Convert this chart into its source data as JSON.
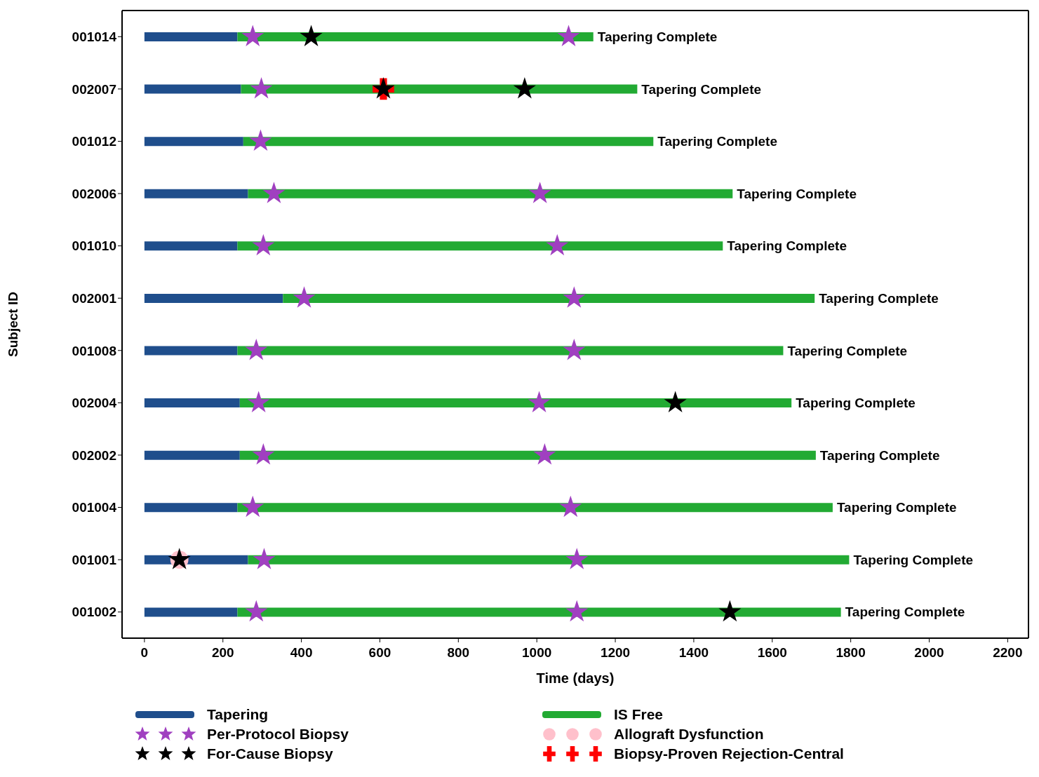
{
  "chart_data": {
    "type": "bar",
    "orientation": "horizontal",
    "stacked": true,
    "categories": [
      "001014",
      "002007",
      "001012",
      "002006",
      "001010",
      "002001",
      "001008",
      "002004",
      "002002",
      "001004",
      "001001",
      "001002"
    ],
    "series": [
      {
        "name": "Tapering",
        "color": "#1f4e8c",
        "values": [
          237,
          246,
          252,
          264,
          237,
          353,
          237,
          243,
          243,
          237,
          264,
          237
        ]
      },
      {
        "name": "IS Free",
        "color": "#22aa33",
        "values": [
          907,
          1010,
          1045,
          1235,
          1237,
          1355,
          1391,
          1406,
          1468,
          1517,
          1532,
          1538
        ]
      },
      {
        "name": "Per-Protocol Biopsy",
        "type": "scatter",
        "marker": "star",
        "color": "#a040c0",
        "x": [
          "001014",
          "001014",
          "002007",
          "001012",
          "002006",
          "002006",
          "001010",
          "001010",
          "002001",
          "002001",
          "001008",
          "001008",
          "002004",
          "002004",
          "002002",
          "002002",
          "001004",
          "001004",
          "001001",
          "001001",
          "001002",
          "001002"
        ],
        "values": [
          276,
          1081,
          298,
          296,
          330,
          1008,
          303,
          1052,
          407,
          1095,
          285,
          1095,
          291,
          1006,
          303,
          1020,
          276,
          1086,
          305,
          1102,
          285,
          1102
        ]
      },
      {
        "name": "Allograft Dysfunction",
        "type": "scatter",
        "marker": "circle",
        "color": "#ffc0cb",
        "x": [
          "001001"
        ],
        "values": [
          89
        ]
      },
      {
        "name": "For-Cause Biopsy",
        "type": "scatter",
        "marker": "star",
        "color": "#000000",
        "x": [
          "001014",
          "002007",
          "002007",
          "002004",
          "001001",
          "001002"
        ],
        "values": [
          425,
          609,
          969,
          1353,
          89,
          1492
        ]
      },
      {
        "name": "Biopsy-Proven Rejection-Central",
        "type": "scatter",
        "marker": "cross",
        "color": "#ff0000",
        "x": [
          "002007"
        ],
        "values": [
          609
        ]
      }
    ],
    "xlim": [
      -57,
      2253
    ],
    "xticks": [
      0,
      200,
      400,
      600,
      800,
      1000,
      1200,
      1400,
      1600,
      1800,
      2000,
      2200
    ],
    "xlabel": "Time (days)",
    "ylabel": "Subject ID",
    "grid": false,
    "legend": "bottom",
    "annotations": [
      "Tapering Complete",
      "Tapering Complete",
      "Tapering Complete",
      "Tapering Complete",
      "Tapering Complete",
      "Tapering Complete",
      "Tapering Complete",
      "Tapering Complete",
      "Tapering Complete",
      "Tapering Complete",
      "Tapering Complete",
      "Tapering Complete"
    ]
  }
}
